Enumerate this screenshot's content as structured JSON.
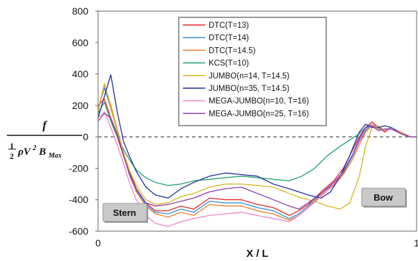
{
  "chart_data": {
    "type": "line",
    "xlabel": "X / L",
    "ylabel": {
      "numerator": "f",
      "frac_num": "1",
      "frac_den": "2",
      "rho_v": "ρV",
      "sup": "2",
      "b": "B",
      "sub": "Max"
    },
    "xlim": [
      0,
      1
    ],
    "ylim": [
      -600,
      800
    ],
    "x_ticks": [
      {
        "v": 0,
        "label": "0"
      },
      {
        "v": 1,
        "label": "1"
      }
    ],
    "y_ticks": [
      {
        "v": 800,
        "label": "800"
      },
      {
        "v": 600,
        "label": "600"
      },
      {
        "v": 400,
        "label": "400"
      },
      {
        "v": 200,
        "label": "200"
      },
      {
        "v": 0,
        "label": "0"
      },
      {
        "v": -200,
        "label": "-200"
      },
      {
        "v": -400,
        "label": "-400"
      },
      {
        "v": -600,
        "label": "-600"
      }
    ],
    "zero_line": "dashed",
    "legend_position": "top-center",
    "annotations": [
      {
        "text": "Stern",
        "x": 0.05,
        "y": -505
      },
      {
        "text": "Bow",
        "x": 0.93,
        "y": -390
      }
    ],
    "series": [
      {
        "name": "DTC(T=13)",
        "color": "#e8242a",
        "style": "solid",
        "x": [
          0,
          0.02,
          0.04,
          0.06,
          0.08,
          0.1,
          0.12,
          0.15,
          0.18,
          0.22,
          0.26,
          0.3,
          0.35,
          0.4,
          0.45,
          0.5,
          0.55,
          0.6,
          0.63,
          0.66,
          0.7,
          0.74,
          0.77,
          0.8,
          0.82,
          0.84,
          0.86,
          0.88,
          0.9,
          0.92,
          0.95,
          0.98,
          1.0
        ],
        "y": [
          200,
          240,
          120,
          0,
          -120,
          -230,
          -330,
          -420,
          -470,
          -470,
          -440,
          -460,
          -390,
          -400,
          -400,
          -430,
          -450,
          -500,
          -470,
          -430,
          -350,
          -280,
          -200,
          -80,
          0,
          60,
          95,
          60,
          30,
          60,
          20,
          0,
          0
        ]
      },
      {
        "name": "DTC(T=14)",
        "color": "#2f8fd8",
        "style": "solid",
        "x": [
          0,
          0.02,
          0.04,
          0.06,
          0.08,
          0.1,
          0.12,
          0.15,
          0.18,
          0.22,
          0.26,
          0.3,
          0.35,
          0.4,
          0.45,
          0.5,
          0.55,
          0.6,
          0.63,
          0.66,
          0.7,
          0.74,
          0.77,
          0.8,
          0.82,
          0.84,
          0.86,
          0.88,
          0.9,
          0.92,
          0.95,
          0.98,
          1.0
        ],
        "y": [
          180,
          310,
          180,
          40,
          -100,
          -240,
          -340,
          -430,
          -480,
          -490,
          -460,
          -480,
          -410,
          -420,
          -420,
          -450,
          -470,
          -520,
          -490,
          -440,
          -360,
          -300,
          -230,
          -120,
          -30,
          40,
          80,
          50,
          40,
          60,
          30,
          0,
          0
        ]
      },
      {
        "name": "DTC(T=14.5)",
        "color": "#f07a28",
        "style": "solid",
        "x": [
          0,
          0.02,
          0.04,
          0.06,
          0.08,
          0.1,
          0.12,
          0.15,
          0.18,
          0.22,
          0.26,
          0.3,
          0.35,
          0.4,
          0.45,
          0.5,
          0.55,
          0.6,
          0.63,
          0.66,
          0.7,
          0.74,
          0.77,
          0.8,
          0.82,
          0.84,
          0.86,
          0.88,
          0.9,
          0.92,
          0.95,
          0.98,
          1.0
        ],
        "y": [
          160,
          330,
          200,
          50,
          -100,
          -250,
          -350,
          -440,
          -490,
          -510,
          -480,
          -500,
          -430,
          -440,
          -440,
          -470,
          -490,
          -530,
          -500,
          -450,
          -370,
          -310,
          -240,
          -140,
          -50,
          30,
          70,
          50,
          40,
          55,
          30,
          0,
          0
        ]
      },
      {
        "name": "KCS(T=10)",
        "color": "#1fa06a",
        "style": "solid",
        "x": [
          0,
          0.02,
          0.04,
          0.06,
          0.08,
          0.1,
          0.12,
          0.15,
          0.18,
          0.22,
          0.26,
          0.3,
          0.35,
          0.4,
          0.45,
          0.5,
          0.55,
          0.6,
          0.64,
          0.68,
          0.72,
          0.76,
          0.79,
          0.82,
          0.84,
          0.86,
          0.88,
          0.9,
          0.92,
          0.95,
          0.98,
          1.0
        ],
        "y": [
          150,
          220,
          100,
          0,
          -80,
          -150,
          -210,
          -260,
          -290,
          -310,
          -300,
          -280,
          -270,
          -260,
          -250,
          -260,
          -270,
          -280,
          -250,
          -200,
          -120,
          -60,
          -20,
          20,
          60,
          80,
          60,
          40,
          55,
          20,
          0,
          0
        ]
      },
      {
        "name": "JUMBO(n=14, T=14.5)",
        "color": "#d4b41a",
        "style": "solid",
        "x": [
          0,
          0.02,
          0.04,
          0.06,
          0.08,
          0.1,
          0.12,
          0.15,
          0.18,
          0.22,
          0.26,
          0.3,
          0.35,
          0.4,
          0.45,
          0.5,
          0.55,
          0.6,
          0.64,
          0.68,
          0.72,
          0.76,
          0.79,
          0.82,
          0.84,
          0.86,
          0.88,
          0.9,
          0.92,
          0.95,
          0.98,
          1.0
        ],
        "y": [
          170,
          340,
          180,
          40,
          -100,
          -220,
          -310,
          -400,
          -430,
          -420,
          -380,
          -360,
          -320,
          -300,
          -300,
          -310,
          -320,
          -360,
          -390,
          -410,
          -440,
          -460,
          -420,
          -250,
          -60,
          60,
          70,
          40,
          55,
          20,
          0,
          0
        ]
      },
      {
        "name": "JUMBO(n=35, T=14.5)",
        "color": "#1c2c9c",
        "style": "solid",
        "x": [
          0,
          0.02,
          0.04,
          0.06,
          0.08,
          0.1,
          0.12,
          0.15,
          0.18,
          0.22,
          0.26,
          0.3,
          0.35,
          0.4,
          0.45,
          0.5,
          0.55,
          0.6,
          0.63,
          0.66,
          0.7,
          0.73,
          0.76,
          0.79,
          0.82,
          0.84,
          0.86,
          0.88,
          0.9,
          0.92,
          0.95,
          0.98,
          1.0
        ],
        "y": [
          120,
          260,
          395,
          160,
          -30,
          -130,
          -220,
          -320,
          -370,
          -390,
          -330,
          -290,
          -250,
          -230,
          -240,
          -250,
          -300,
          -330,
          -350,
          -370,
          -390,
          -350,
          -250,
          -120,
          30,
          80,
          60,
          60,
          70,
          60,
          20,
          0,
          0
        ]
      },
      {
        "name": "MEGA-JUMBO(n=10, T=16)",
        "color": "#f081c8",
        "style": "solid",
        "x": [
          0,
          0.02,
          0.04,
          0.06,
          0.08,
          0.1,
          0.12,
          0.15,
          0.18,
          0.22,
          0.26,
          0.3,
          0.35,
          0.4,
          0.45,
          0.5,
          0.55,
          0.6,
          0.63,
          0.66,
          0.7,
          0.74,
          0.77,
          0.8,
          0.82,
          0.84,
          0.86,
          0.88,
          0.9,
          0.92,
          0.95,
          0.98,
          1.0
        ],
        "y": [
          120,
          160,
          60,
          -50,
          -170,
          -300,
          -400,
          -500,
          -550,
          -570,
          -540,
          -520,
          -500,
          -490,
          -480,
          -500,
          -520,
          -540,
          -500,
          -450,
          -380,
          -300,
          -220,
          -110,
          -20,
          50,
          80,
          50,
          40,
          55,
          20,
          0,
          0
        ]
      },
      {
        "name": "MEGA-JUMBO(n=25, T=16)",
        "color": "#8a3aa8",
        "style": "solid",
        "x": [
          0,
          0.02,
          0.04,
          0.06,
          0.08,
          0.1,
          0.12,
          0.15,
          0.18,
          0.22,
          0.26,
          0.3,
          0.35,
          0.4,
          0.45,
          0.5,
          0.55,
          0.6,
          0.63,
          0.66,
          0.7,
          0.74,
          0.77,
          0.8,
          0.82,
          0.84,
          0.86,
          0.88,
          0.9,
          0.92,
          0.95,
          0.98,
          1.0
        ],
        "y": [
          100,
          150,
          120,
          20,
          -120,
          -250,
          -330,
          -420,
          -440,
          -430,
          -410,
          -390,
          -350,
          -330,
          -320,
          -360,
          -400,
          -440,
          -460,
          -420,
          -360,
          -290,
          -220,
          -110,
          -10,
          60,
          70,
          40,
          50,
          50,
          20,
          0,
          0
        ]
      }
    ]
  }
}
